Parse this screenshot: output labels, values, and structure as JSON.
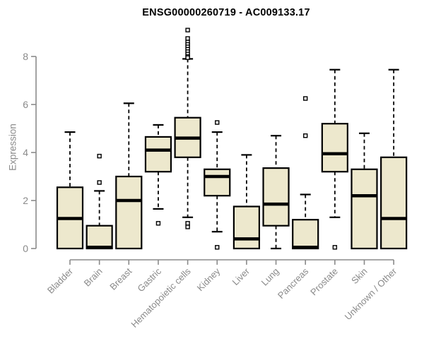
{
  "title": "ENSG00000260719 - AC009133.17",
  "y_axis_label": "Expression",
  "chart_data": {
    "type": "boxplot",
    "title": "ENSG00000260719 - AC009133.17",
    "xlabel": "",
    "ylabel": "Expression",
    "ylim": [
      0,
      9.3
    ],
    "yticks": [
      0,
      2,
      4,
      6,
      8
    ],
    "grid": false,
    "legend": "none",
    "categories": [
      "Bladder",
      "Brain",
      "Breast",
      "Gastric",
      "Hematopoietic cells",
      "Kidney",
      "Liver",
      "Lung",
      "Pancreas",
      "Prostate",
      "Skin",
      "Unknown / Other"
    ],
    "boxes": [
      {
        "category": "Bladder",
        "whisker_low": 0,
        "q1": 0,
        "median": 1.25,
        "q3": 2.55,
        "whisker_high": 4.85,
        "outliers": []
      },
      {
        "category": "Brain",
        "whisker_low": 0,
        "q1": 0,
        "median": 0.05,
        "q3": 0.95,
        "whisker_high": 2.4,
        "outliers": [
          3.85,
          2.75
        ]
      },
      {
        "category": "Breast",
        "whisker_low": 0,
        "q1": 0,
        "median": 2.0,
        "q3": 3.0,
        "whisker_high": 6.05,
        "outliers": []
      },
      {
        "category": "Gastric",
        "whisker_low": 1.65,
        "q1": 3.2,
        "median": 4.1,
        "q3": 4.65,
        "whisker_high": 5.15,
        "outliers": [
          1.05
        ]
      },
      {
        "category": "Hematopoietic cells",
        "whisker_low": 1.3,
        "q1": 3.8,
        "median": 4.6,
        "q3": 5.45,
        "whisker_high": 7.9,
        "outliers": [
          9.1,
          8.75,
          8.6,
          8.5,
          8.4,
          8.3,
          8.2,
          8.1,
          8.0,
          7.95,
          1.05,
          0.9
        ]
      },
      {
        "category": "Kidney",
        "whisker_low": 0.7,
        "q1": 2.2,
        "median": 3.0,
        "q3": 3.3,
        "whisker_high": 4.85,
        "outliers": [
          5.25,
          0.05
        ]
      },
      {
        "category": "Liver",
        "whisker_low": 0,
        "q1": 0,
        "median": 0.4,
        "q3": 1.75,
        "whisker_high": 3.9,
        "outliers": []
      },
      {
        "category": "Lung",
        "whisker_low": 0,
        "q1": 0.95,
        "median": 1.85,
        "q3": 3.35,
        "whisker_high": 4.7,
        "outliers": []
      },
      {
        "category": "Pancreas",
        "whisker_low": 0,
        "q1": 0,
        "median": 0.05,
        "q3": 1.2,
        "whisker_high": 2.25,
        "outliers": [
          6.25,
          4.7
        ]
      },
      {
        "category": "Prostate",
        "whisker_low": 1.3,
        "q1": 3.2,
        "median": 3.95,
        "q3": 5.2,
        "whisker_high": 7.45,
        "outliers": [
          0.05
        ]
      },
      {
        "category": "Skin",
        "whisker_low": 0,
        "q1": 0,
        "median": 2.2,
        "q3": 3.3,
        "whisker_high": 4.8,
        "outliers": []
      },
      {
        "category": "Unknown / Other",
        "whisker_low": 0,
        "q1": 0,
        "median": 1.25,
        "q3": 3.8,
        "whisker_high": 7.45,
        "outliers": []
      }
    ],
    "colors": {
      "box_fill": "#EDE8CD",
      "box_border": "#000000",
      "median": "#000000",
      "whisker": "#000000",
      "outlier_stroke": "#000000",
      "outlier_fill": "#ffffff",
      "axis": "#8a8a8a",
      "tick_label": "#8a8a8a",
      "title": "#000000"
    }
  }
}
